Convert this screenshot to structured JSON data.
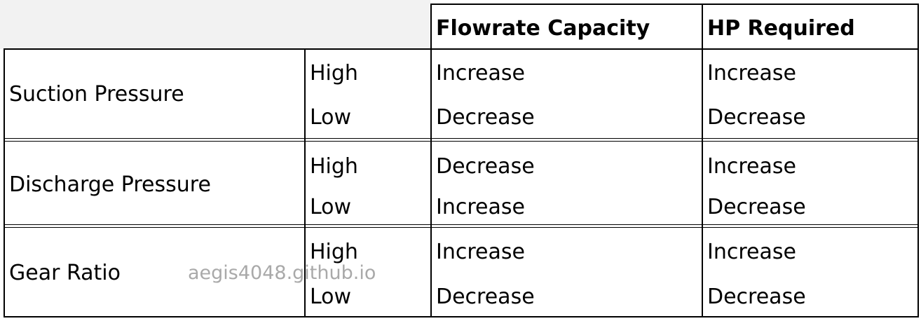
{
  "headers": {
    "flowrate": "Flowrate Capacity",
    "hp": "HP Required"
  },
  "rows": [
    {
      "factor": "Suction Pressure",
      "levels": [
        {
          "level": "High",
          "flowrate": "Increase",
          "hp": "Increase"
        },
        {
          "level": "Low",
          "flowrate": "Decrease",
          "hp": "Decrease"
        }
      ]
    },
    {
      "factor": "Discharge Pressure",
      "levels": [
        {
          "level": "High",
          "flowrate": "Decrease",
          "hp": "Increase"
        },
        {
          "level": "Low",
          "flowrate": "Increase",
          "hp": "Decrease"
        }
      ]
    },
    {
      "factor": "Gear Ratio",
      "levels": [
        {
          "level": "High",
          "flowrate": "Increase",
          "hp": "Increase"
        },
        {
          "level": "Low",
          "flowrate": "Decrease",
          "hp": "Decrease"
        }
      ]
    }
  ],
  "watermark": "aegis4048.github.io"
}
